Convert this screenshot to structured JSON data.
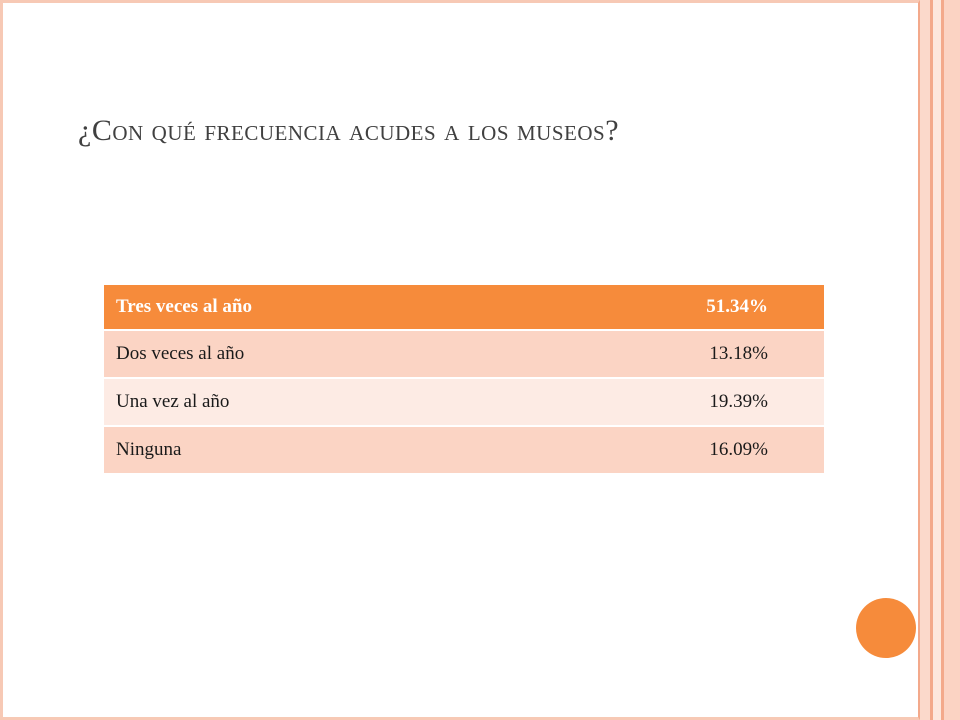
{
  "slide": {
    "title": "¿Con qué frecuencia acudes a los museos?"
  },
  "table": {
    "rows": [
      {
        "label": "Tres veces al año",
        "value": "51.34%"
      },
      {
        "label": "Dos veces al año",
        "value": "13.18%"
      },
      {
        "label": "Una vez al año",
        "value": "19.39%"
      },
      {
        "label": "Ninguna",
        "value": "16.09%"
      }
    ]
  },
  "colors": {
    "accent": "#f68b3b",
    "row_light": "#fbd4c4",
    "row_lighter": "#fdebe4",
    "frame": "#f7c9b5",
    "title_text": "#404040"
  }
}
